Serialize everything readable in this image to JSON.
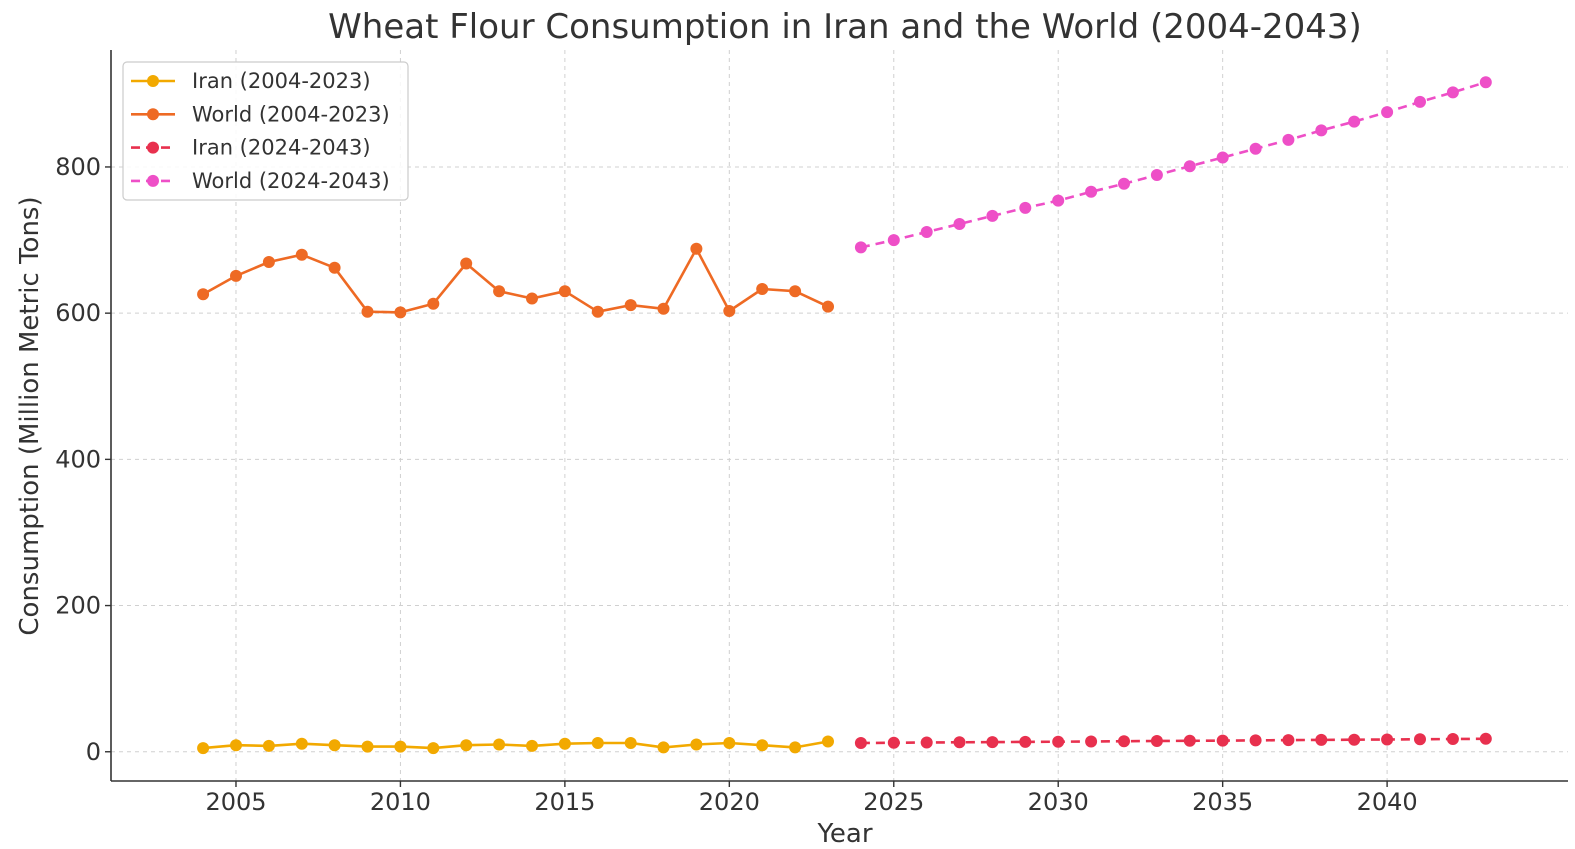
{
  "chart_data": {
    "type": "line",
    "title": "Wheat Flour Consumption in Iran and the World (2004-2043)",
    "xlabel": "Year",
    "ylabel": "Consumption (Million Metric Tons)",
    "xlim": [
      2001.2,
      2045.5
    ],
    "ylim": [
      -40,
      960
    ],
    "xticks": [
      2005,
      2010,
      2015,
      2020,
      2025,
      2030,
      2035,
      2040
    ],
    "yticks": [
      0,
      200,
      400,
      600,
      800
    ],
    "grid": true,
    "legend_position": "top-left",
    "series": [
      {
        "name": "Iran (2004-2023)",
        "color": "#f2a900",
        "style": "solid",
        "x": [
          2004,
          2005,
          2006,
          2007,
          2008,
          2009,
          2010,
          2011,
          2012,
          2013,
          2014,
          2015,
          2016,
          2017,
          2018,
          2019,
          2020,
          2021,
          2022,
          2023
        ],
        "values": [
          5,
          9,
          8,
          11,
          9,
          7,
          7,
          5,
          9,
          10,
          8,
          11,
          12,
          12,
          6,
          10,
          12,
          9,
          6,
          14
        ]
      },
      {
        "name": "World (2004-2023)",
        "color": "#ee6a24",
        "style": "solid",
        "x": [
          2004,
          2005,
          2006,
          2007,
          2008,
          2009,
          2010,
          2011,
          2012,
          2013,
          2014,
          2015,
          2016,
          2017,
          2018,
          2019,
          2020,
          2021,
          2022,
          2023
        ],
        "values": [
          626,
          651,
          670,
          680,
          662,
          602,
          601,
          613,
          668,
          630,
          620,
          630,
          602,
          611,
          606,
          688,
          603,
          633,
          630,
          609
        ]
      },
      {
        "name": "Iran (2024-2043)",
        "color": "#e8304e",
        "style": "dashed",
        "x": [
          2024,
          2025,
          2026,
          2027,
          2028,
          2029,
          2030,
          2031,
          2032,
          2033,
          2034,
          2035,
          2036,
          2037,
          2038,
          2039,
          2040,
          2041,
          2042,
          2043
        ],
        "values": [
          12,
          12.3,
          12.6,
          12.9,
          13.2,
          13.5,
          13.8,
          14.1,
          14.4,
          14.7,
          15,
          15.3,
          15.6,
          15.9,
          16.2,
          16.5,
          16.8,
          17.1,
          17.4,
          17.7
        ]
      },
      {
        "name": "World (2024-2043)",
        "color": "#ee4fc7",
        "style": "dashed",
        "x": [
          2024,
          2025,
          2026,
          2027,
          2028,
          2029,
          2030,
          2031,
          2032,
          2033,
          2034,
          2035,
          2036,
          2037,
          2038,
          2039,
          2040,
          2041,
          2042,
          2043
        ],
        "values": [
          690,
          700,
          711,
          722,
          733,
          744,
          754,
          766,
          777,
          789,
          801,
          813,
          825,
          837,
          850,
          862,
          875,
          889,
          902,
          916
        ]
      }
    ]
  }
}
